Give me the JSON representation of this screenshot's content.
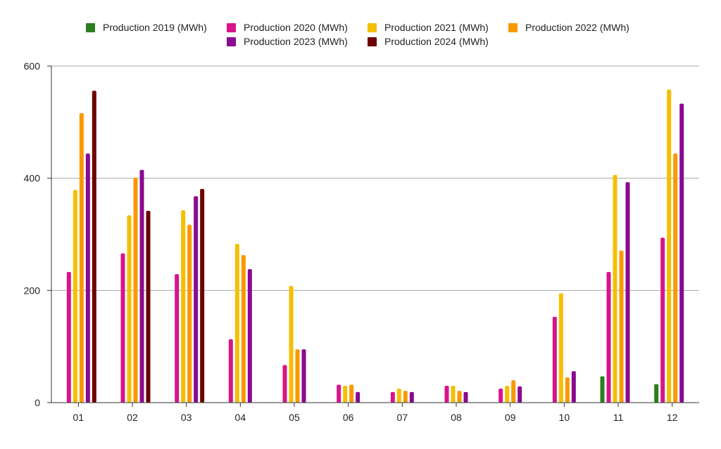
{
  "chart_data": {
    "type": "bar",
    "title": "",
    "xlabel": "",
    "ylabel": "",
    "ylim": [
      0,
      600
    ],
    "yticks": [
      0,
      200,
      400,
      600
    ],
    "grid": true,
    "legend_position": "top-center",
    "categories": [
      "01",
      "02",
      "03",
      "04",
      "05",
      "06",
      "07",
      "08",
      "09",
      "10",
      "11",
      "12"
    ],
    "series": [
      {
        "name": "Production 2019 (MWh)",
        "color": "#2e7d1e",
        "values": [
          null,
          null,
          null,
          null,
          null,
          null,
          null,
          null,
          null,
          null,
          47,
          33
        ]
      },
      {
        "name": "Production 2020 (MWh)",
        "color": "#d8148a",
        "values": [
          233,
          266,
          229,
          113,
          67,
          32,
          19,
          30,
          25,
          153,
          233,
          294
        ]
      },
      {
        "name": "Production 2021 (MWh)",
        "color": "#f5bf00",
        "values": [
          379,
          334,
          343,
          283,
          208,
          30,
          25,
          30,
          30,
          195,
          406,
          558
        ]
      },
      {
        "name": "Production 2022 (MWh)",
        "color": "#fa9800",
        "values": [
          516,
          401,
          317,
          263,
          95,
          32,
          21,
          21,
          40,
          45,
          271,
          444
        ]
      },
      {
        "name": "Production 2023 (MWh)",
        "color": "#8a0a8e",
        "values": [
          444,
          415,
          368,
          238,
          95,
          19,
          19,
          19,
          29,
          56,
          393,
          533
        ]
      },
      {
        "name": "Production 2024 (MWh)",
        "color": "#6e0000",
        "values": [
          556,
          342,
          381,
          null,
          null,
          null,
          null,
          null,
          null,
          null,
          null,
          null
        ]
      }
    ]
  }
}
